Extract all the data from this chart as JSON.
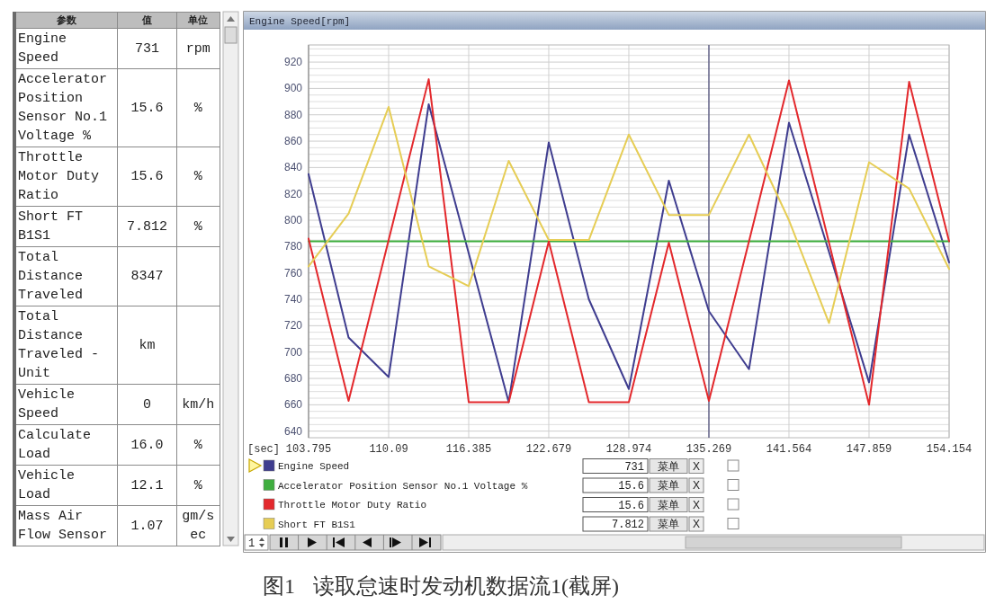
{
  "chart_data": [
    {
      "type": "other",
      "annotations": [
        "参数",
        "值",
        "单位"
      ],
      "categories": [
        "Engine Speed",
        "Accelerator Position Sensor No.1 Voltage %",
        "Throttle Motor Duty Ratio",
        "Short FT B1S1",
        "Total Distance Traveled",
        "Total Distance Traveled - Unit",
        "Vehicle Speed",
        "Calculate Load",
        "Vehicle Load",
        "Mass Air Flow Sensor"
      ],
      "cell_labels": [
        [
          "731",
          "rpm"
        ],
        [
          "15.6",
          "%"
        ],
        [
          "15.6",
          "%"
        ],
        [
          "7.812",
          "%"
        ],
        [
          "8347",
          null
        ],
        [
          "km",
          null
        ],
        [
          "0",
          "km/h"
        ],
        [
          "16.0",
          "%"
        ],
        [
          "12.1",
          "%"
        ],
        [
          "1.07",
          "gm/sec"
        ]
      ]
    },
    {
      "type": "line",
      "title": "Engine Speed[rpm]",
      "xlabel": "[sec]",
      "x": [
        103.795,
        106.94,
        110.09,
        113.24,
        116.385,
        119.53,
        122.679,
        125.83,
        128.974,
        132.12,
        135.269,
        138.42,
        141.564,
        144.71,
        147.859,
        151.01,
        154.154
      ],
      "xlim": [
        103.795,
        154.154
      ],
      "xticks": [
        103.795,
        110.09,
        116.385,
        122.679,
        128.974,
        135.269,
        141.564,
        147.859,
        154.154
      ],
      "ylim": [
        635,
        933
      ],
      "yticks": [
        640,
        {
          "value": 645,
          "label": null
        },
        {
          "value": 650,
          "label": null
        },
        {
          "value": 655,
          "label": null
        },
        660,
        {
          "value": 665,
          "label": null
        },
        {
          "value": 670,
          "label": null
        },
        {
          "value": 675,
          "label": null
        },
        680,
        {
          "value": 685,
          "label": null
        },
        {
          "value": 690,
          "label": null
        },
        {
          "value": 695,
          "label": null
        },
        700,
        {
          "value": 705,
          "label": null
        },
        {
          "value": 710,
          "label": null
        },
        {
          "value": 715,
          "label": null
        },
        720,
        {
          "value": 725,
          "label": null
        },
        {
          "value": 730,
          "label": null
        },
        {
          "value": 735,
          "label": null
        },
        740,
        {
          "value": 745,
          "label": null
        },
        {
          "value": 750,
          "label": null
        },
        {
          "value": 755,
          "label": null
        },
        760,
        {
          "value": 765,
          "label": null
        },
        {
          "value": 770,
          "label": null
        },
        {
          "value": 775,
          "label": null
        },
        780,
        {
          "value": 785,
          "label": null
        },
        {
          "value": 790,
          "label": null
        },
        {
          "value": 795,
          "label": null
        },
        800,
        {
          "value": 805,
          "label": null
        },
        {
          "value": 810,
          "label": null
        },
        {
          "value": 815,
          "label": null
        },
        820,
        {
          "value": 825,
          "label": null
        },
        {
          "value": 830,
          "label": null
        },
        {
          "value": 835,
          "label": null
        },
        840,
        {
          "value": 845,
          "label": null
        },
        {
          "value": 850,
          "label": null
        },
        {
          "value": 855,
          "label": null
        },
        860,
        {
          "value": 865,
          "label": null
        },
        {
          "value": 870,
          "label": null
        },
        {
          "value": 875,
          "label": null
        },
        880,
        {
          "value": 885,
          "label": null
        },
        {
          "value": 890,
          "label": null
        },
        {
          "value": 895,
          "label": null
        },
        900,
        {
          "value": 905,
          "label": null
        },
        {
          "value": 910,
          "label": null
        },
        {
          "value": 915,
          "label": null
        },
        920,
        {
          "value": 925,
          "label": null
        },
        {
          "value": 930,
          "label": null
        }
      ],
      "grid": true,
      "legend": "bottom",
      "ref_lines": [
        {
          "axis": "x",
          "value": 135.269,
          "color": "#4a4a78"
        }
      ],
      "series": [
        {
          "name": "Engine Speed",
          "color": "#3f3d8f",
          "values": [
            835,
            711,
            681,
            888,
            775,
            662,
            859,
            740,
            672,
            830,
            731,
            687,
            874,
            776,
            677,
            865,
            768
          ]
        },
        {
          "name": "Accelerator Position Sensor No.1 Voltage %",
          "color": "#3fae3f",
          "values": [
            784,
            784,
            784,
            784,
            784,
            784,
            784,
            784,
            784,
            784,
            784,
            784,
            784,
            784,
            784,
            784,
            784
          ]
        },
        {
          "name": "Throttle Motor Duty Ratio",
          "color": "#e3282c",
          "values": [
            786,
            663,
            785,
            907,
            662,
            662,
            784,
            662,
            662,
            783,
            663,
            784,
            906,
            783,
            660,
            905,
            784
          ]
        },
        {
          "name": "Short FT B1S1",
          "color": "#e6cd55",
          "values": [
            765,
            805,
            886,
            765,
            750,
            845,
            785,
            785,
            865,
            804,
            804,
            865,
            800,
            722,
            844,
            824,
            763
          ]
        }
      ],
      "annotations": [
        "731",
        "15.6",
        "15.6",
        "7.812",
        "菜单",
        "菜单",
        "菜单",
        "菜单",
        "X",
        "X",
        "X",
        "X",
        "1",
        "图1 读取怠速时发动机数据流1(截屏)"
      ]
    }
  ]
}
